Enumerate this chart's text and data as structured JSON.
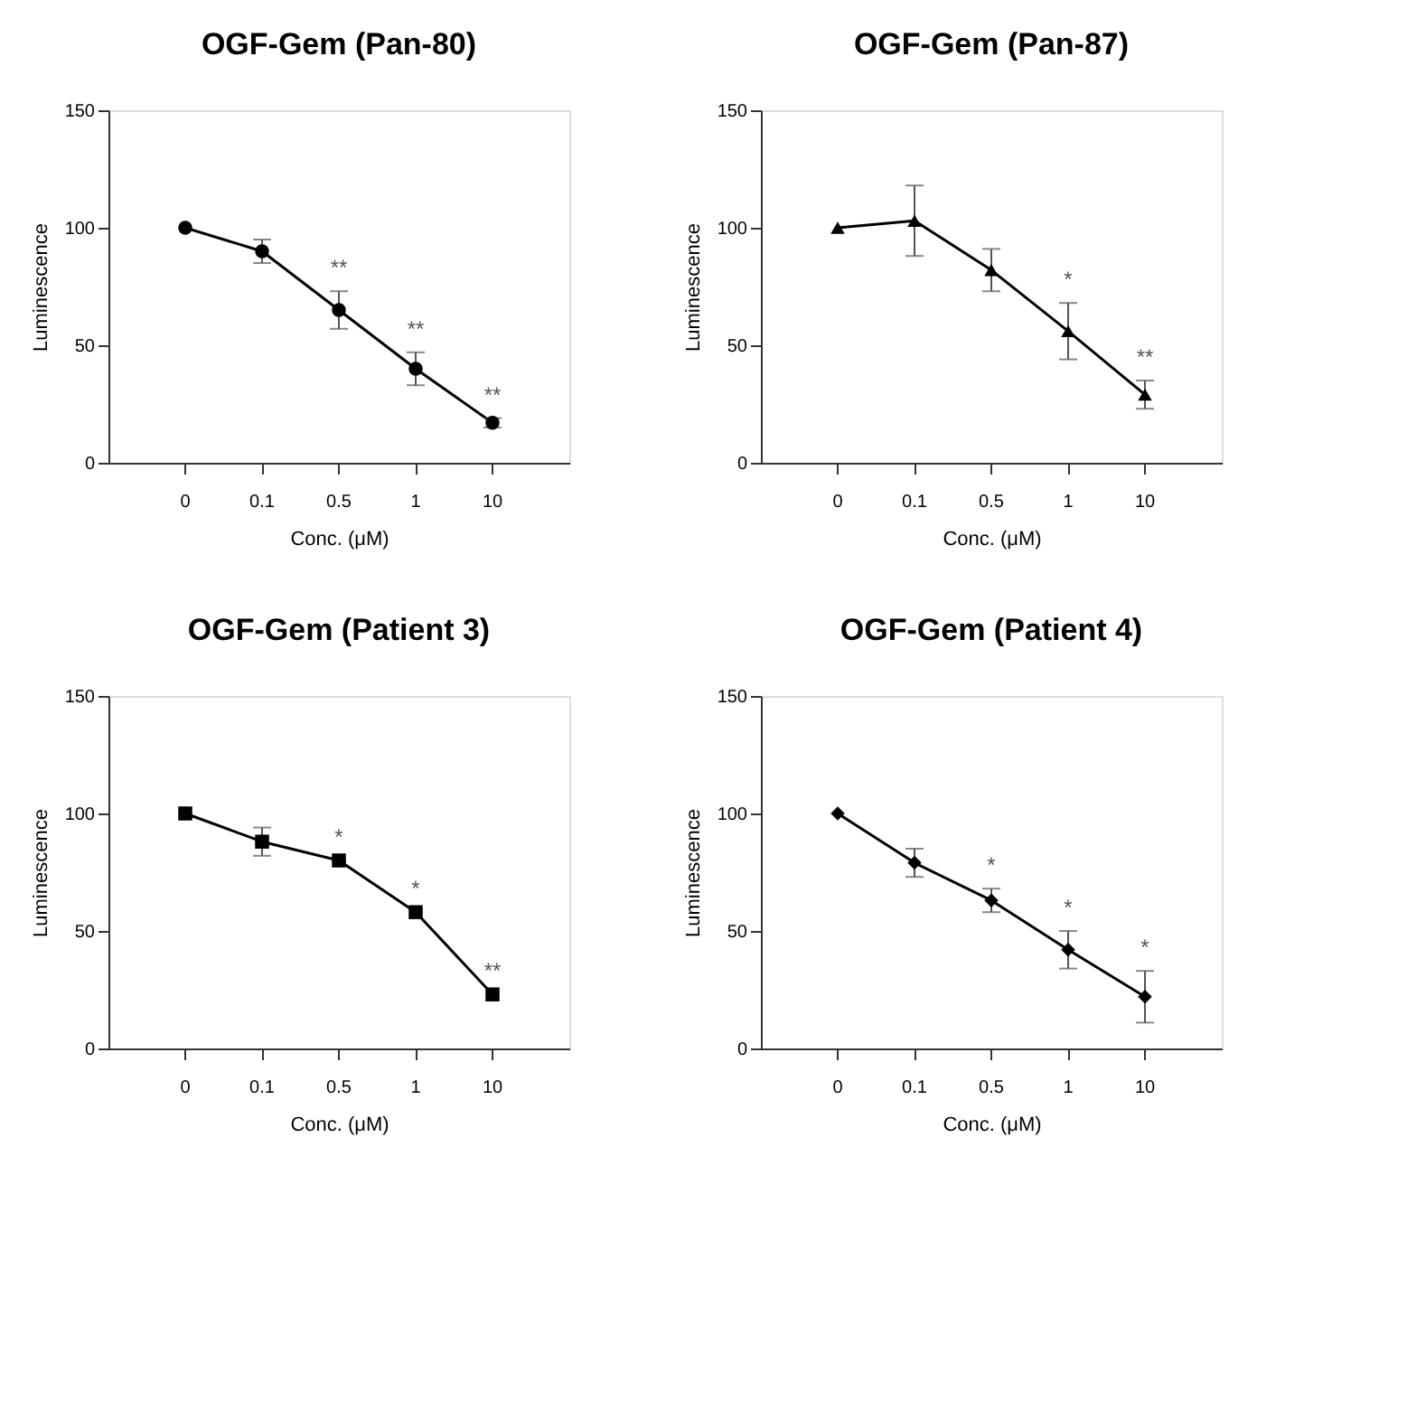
{
  "chart_data": [
    {
      "type": "line",
      "title": "OGF-Gem (Pan-80)",
      "xlabel": "Conc. (μM)",
      "ylabel": "Luminescence",
      "categories": [
        "0",
        "0.1",
        "0.5",
        "1",
        "10"
      ],
      "series": [
        {
          "color": "#000000",
          "values": [
            100,
            90,
            65,
            40,
            17
          ],
          "errors": [
            null,
            5,
            8,
            7,
            2
          ],
          "value_labels": [
            null,
            null,
            "**",
            "**",
            "**"
          ]
        }
      ],
      "ylim": [
        0,
        150
      ],
      "yticks": [
        0,
        50,
        100,
        150
      ],
      "marker": "circle",
      "line_style": "solid"
    },
    {
      "type": "line",
      "title": "OGF-Gem (Pan-87)",
      "xlabel": "Conc. (μM)",
      "ylabel": "Luminescence",
      "categories": [
        "0",
        "0.1",
        "0.5",
        "1",
        "10"
      ],
      "series": [
        {
          "color": "#000000",
          "values": [
            100,
            103,
            82,
            56,
            29
          ],
          "errors": [
            null,
            15,
            9,
            12,
            6
          ],
          "value_labels": [
            null,
            null,
            null,
            "*",
            "**"
          ]
        }
      ],
      "ylim": [
        0,
        150
      ],
      "yticks": [
        0,
        50,
        100,
        150
      ],
      "marker": "triangle",
      "line_style": "solid"
    },
    {
      "type": "line",
      "title": "OGF-Gem (Patient 3)",
      "xlabel": "Conc. (μM)",
      "ylabel": "Luminescence",
      "categories": [
        "0",
        "0.1",
        "0.5",
        "1",
        "10"
      ],
      "series": [
        {
          "color": "#000000",
          "values": [
            100,
            88,
            80,
            58,
            23
          ],
          "errors": [
            null,
            6,
            null,
            null,
            null
          ],
          "value_labels": [
            null,
            null,
            "*",
            "*",
            "**"
          ]
        }
      ],
      "ylim": [
        0,
        150
      ],
      "yticks": [
        0,
        50,
        100,
        150
      ],
      "marker": "square",
      "line_style": "solid"
    },
    {
      "type": "line",
      "title": "OGF-Gem (Patient 4)",
      "xlabel": "Conc. (μM)",
      "ylabel": "Luminescence",
      "categories": [
        "0",
        "0.1",
        "0.5",
        "1",
        "10"
      ],
      "series": [
        {
          "color": "#000000",
          "values": [
            100,
            79,
            63,
            42,
            22
          ],
          "errors": [
            null,
            6,
            5,
            8,
            11
          ],
          "value_labels": [
            null,
            null,
            "*",
            "*",
            "*"
          ]
        }
      ],
      "ylim": [
        0,
        150
      ],
      "yticks": [
        0,
        50,
        100,
        150
      ],
      "marker": "diamond",
      "line_style": "solid"
    }
  ]
}
